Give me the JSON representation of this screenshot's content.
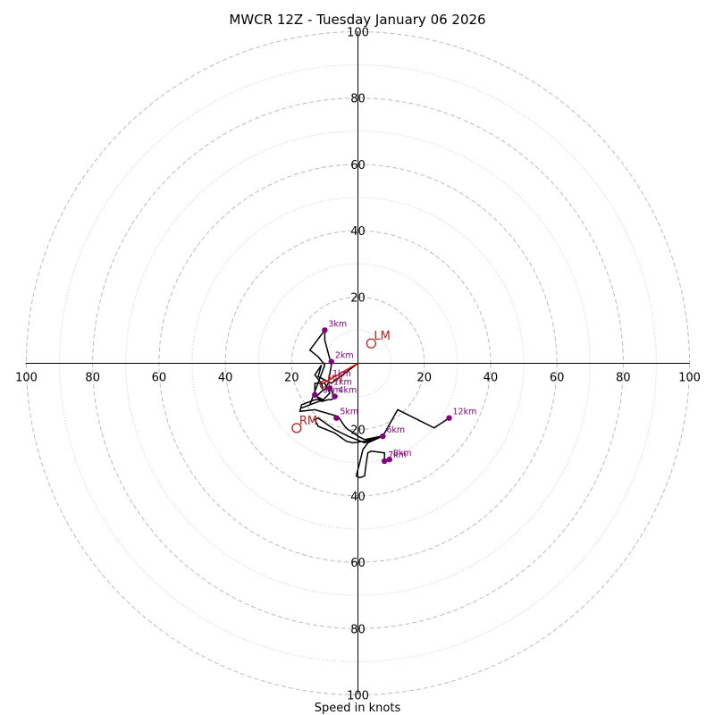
{
  "chart_data": {
    "type": "hodograph",
    "title": "MWCR 12Z - Tuesday January 06 2026",
    "xlabel": "Speed in knots",
    "xlim": [
      -100,
      100
    ],
    "ylim": [
      -100,
      100
    ],
    "ring_values": [
      20,
      40,
      60,
      80,
      100
    ],
    "minor_ring_values": [
      10,
      30,
      50,
      70,
      90
    ],
    "x_tick_labels": [
      "100",
      "80",
      "60",
      "40",
      "20",
      "20",
      "40",
      "60",
      "80",
      "100"
    ],
    "y_tick_labels": [
      "100",
      "80",
      "60",
      "40",
      "20",
      "20",
      "40",
      "60",
      "80",
      "100"
    ],
    "colors": {
      "trace": "#000000",
      "marker": "#800080",
      "motion": "#b22222",
      "shear_vector": "#ff0000",
      "major_grid": "#bbbbbb",
      "minor_grid": "#cccccc"
    },
    "trace": [
      [
        0.0,
        0.0
      ],
      [
        -8.0,
        -6.0
      ],
      [
        -12.0,
        -4.0
      ],
      [
        -11.0,
        -0.5
      ],
      [
        -13.0,
        -3.5
      ],
      [
        -11.0,
        -6.0
      ],
      [
        -10.5,
        -8.0
      ],
      [
        -12.5,
        -10.0
      ],
      [
        -10.5,
        -11.0
      ],
      [
        -17.0,
        -13.5
      ],
      [
        -14.5,
        -12.5
      ],
      [
        -10.0,
        -0.5
      ],
      [
        -12.0,
        2.0
      ],
      [
        -14.5,
        4.0
      ],
      [
        -10.0,
        10.0
      ],
      [
        -10.0,
        7.0
      ],
      [
        -8.0,
        -0.5
      ],
      [
        -9.0,
        -6.0
      ],
      [
        -10.0,
        -8.0
      ],
      [
        -8.0,
        -7.0
      ],
      [
        -7.5,
        -10.0
      ],
      [
        -6.5,
        -10.0
      ],
      [
        -8.0,
        -11.0
      ],
      [
        -9.0,
        -11.0
      ],
      [
        -11.0,
        -11.5
      ],
      [
        -13.0,
        -9.5
      ],
      [
        -13.0,
        -6.0
      ],
      [
        -10.0,
        -6.0
      ],
      [
        -8.5,
        -9.0
      ],
      [
        -10.5,
        -11.0
      ],
      [
        -13.0,
        -11.0
      ],
      [
        -17.0,
        -12.5
      ],
      [
        -17.5,
        -14.5
      ],
      [
        -13.0,
        -14.0
      ],
      [
        -6.0,
        -16.0
      ],
      [
        -4.0,
        -19.0
      ],
      [
        -3.0,
        -20.0
      ],
      [
        -2.0,
        -20.5
      ],
      [
        0.0,
        -22.0
      ],
      [
        2.0,
        -23.0
      ],
      [
        7.0,
        -22.0
      ],
      [
        2.0,
        -23.5
      ],
      [
        -1.5,
        -24.0
      ],
      [
        -3.5,
        -23.5
      ],
      [
        -7.0,
        -21.0
      ],
      [
        -12.0,
        -19.0
      ],
      [
        -13.0,
        -17.0
      ],
      [
        -12.0,
        -16.5
      ],
      [
        -7.0,
        -20.0
      ],
      [
        -3.0,
        -22.0
      ],
      [
        2.0,
        -24.0
      ],
      [
        7.5,
        -22.0
      ],
      [
        12.0,
        -14.0
      ],
      [
        23.0,
        -19.5
      ],
      [
        27.5,
        -16.5
      ],
      [
        23.0,
        -19.5
      ],
      [
        12.0,
        -14.0
      ],
      [
        7.5,
        -22.0
      ],
      [
        3.0,
        -24.0
      ],
      [
        1.5,
        -26.0
      ],
      [
        0.5,
        -30.0
      ],
      [
        -0.5,
        -34.0
      ],
      [
        0.5,
        -34.5
      ],
      [
        2.0,
        -34.0
      ],
      [
        2.5,
        -30.0
      ],
      [
        3.0,
        -27.0
      ],
      [
        4.0,
        -26.5
      ],
      [
        8.0,
        -27.0
      ],
      [
        8.0,
        -30.0
      ],
      [
        9.5,
        -29.0
      ]
    ],
    "height_markers": [
      {
        "label": "2km",
        "u": -8.0,
        "v": 0.5
      },
      {
        "label": "3km",
        "u": -10.0,
        "v": 10.0
      },
      {
        "label": "4km",
        "u": -7.0,
        "v": -10.0
      },
      {
        "label": "5km",
        "u": -6.5,
        "v": -16.5
      },
      {
        "label": "6km",
        "u": 7.5,
        "v": -22.0
      },
      {
        "label": "7km",
        "u": 8.0,
        "v": -29.5
      },
      {
        "label": "8km",
        "u": 9.5,
        "v": -29.0
      },
      {
        "label": "12km",
        "u": 27.5,
        "v": -16.5
      },
      {
        "label": "1km",
        "u": -8.5,
        "v": -7.5
      },
      {
        "label": "",
        "u": -13.0,
        "v": -9.5
      }
    ],
    "storm_motion": [
      {
        "label": "LM",
        "u": 4.0,
        "v": 6.0
      },
      {
        "label": "RM",
        "u": -18.5,
        "v": -19.5
      },
      {
        "label": "MW",
        "u": -10.0,
        "v": -6.5
      }
    ],
    "overlay_labels": [
      {
        "label": "MW",
        "u": -10.0,
        "v": -6.5,
        "color": "#b22222"
      },
      {
        "label": "1km",
        "u": -8.5,
        "v": -5.0,
        "color": "#800080"
      },
      {
        "label": "3km",
        "u": -11.5,
        "v": -10.0,
        "color": "#800080"
      }
    ],
    "shear_vector": {
      "from": [
        0,
        0
      ],
      "to": [
        -10.5,
        -6.0
      ]
    }
  }
}
